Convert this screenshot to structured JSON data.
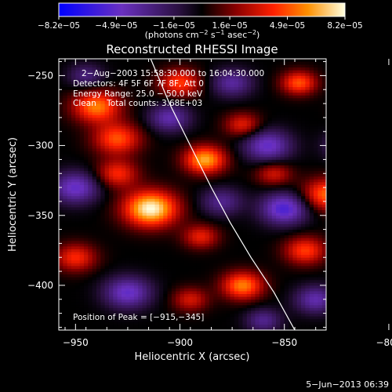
{
  "chart_data": {
    "type": "heatmap",
    "title": "Reconstructed RHESSI Image",
    "xlabel": "Heliocentric X (arcsec)",
    "ylabel": "Heliocentric Y (arcsec)",
    "xlim": [
      -958,
      -830
    ],
    "ylim": [
      -432,
      -238
    ],
    "x_ticks": [
      -950,
      -900,
      -850,
      -800
    ],
    "x_tick_labels": [
      "−950",
      "−900",
      "−850",
      "−800"
    ],
    "y_ticks": [
      -250,
      -300,
      -350,
      -400
    ],
    "y_tick_labels": [
      "−250",
      "−300",
      "−350",
      "−400"
    ],
    "colorbar": {
      "min": -8.2e-05,
      "max": 8.2e-05,
      "tick_labels": [
        "−8.2e−05",
        "−4.9e−05",
        "−1.6e−05",
        "1.6e−05",
        "4.9e−05",
        "8.2e−05"
      ],
      "tick_values": [
        -8.2e-05,
        -4.9e-05,
        -1.6e-05,
        1.6e-05,
        4.9e-05,
        8.2e-05
      ],
      "units_prefix": "(photons cm",
      "units_sup1": "−2",
      "units_mid": " s",
      "units_sup2": "−1",
      "units_mid2": " asec",
      "units_sup3": "−2",
      "units_suffix": ")"
    },
    "annotations": [
      "2−Aug−2003 15:58:30.000 to 16:04:30.000",
      "Detectors: 4F 5F 6F 7F 8F, Att 0",
      "Energy Range: 25.0 − 50.0 keV",
      "Clean    Total counts: 3.68E+03"
    ],
    "peak_label": "Position of Peak = [−915,−345]",
    "peak": [
      -915,
      -345
    ],
    "limb_curve": [
      [
        -914,
        -238
      ],
      [
        -905,
        -270
      ],
      [
        -895,
        -300
      ],
      [
        -885,
        -330
      ],
      [
        -876,
        -355
      ],
      [
        -866,
        -380
      ],
      [
        -855,
        -405
      ],
      [
        -845,
        -432
      ]
    ],
    "sources": [
      {
        "x": -914,
        "y": -345,
        "amp": 1.0,
        "sigma": 9
      },
      {
        "x": -940,
        "y": -272,
        "amp": 0.7,
        "sigma": 8
      },
      {
        "x": -888,
        "y": -310,
        "amp": 0.8,
        "sigma": 7
      },
      {
        "x": -900,
        "y": -255,
        "amp": 0.55,
        "sigma": 7
      },
      {
        "x": -930,
        "y": -295,
        "amp": 0.6,
        "sigma": 8
      },
      {
        "x": -930,
        "y": -320,
        "amp": 0.5,
        "sigma": 7
      },
      {
        "x": -870,
        "y": -400,
        "amp": 0.7,
        "sigma": 7
      },
      {
        "x": -843,
        "y": -255,
        "amp": 0.6,
        "sigma": 6
      },
      {
        "x": -815,
        "y": -275,
        "amp": 0.55,
        "sigma": 6
      },
      {
        "x": -830,
        "y": -335,
        "amp": 0.65,
        "sigma": 8
      },
      {
        "x": -808,
        "y": -350,
        "amp": 0.6,
        "sigma": 6
      },
      {
        "x": -840,
        "y": -375,
        "amp": 0.55,
        "sigma": 7
      },
      {
        "x": -815,
        "y": -415,
        "amp": 0.4,
        "sigma": 6
      },
      {
        "x": -950,
        "y": -380,
        "amp": 0.5,
        "sigma": 7
      },
      {
        "x": -895,
        "y": -410,
        "amp": 0.4,
        "sigma": 6
      },
      {
        "x": -870,
        "y": -285,
        "amp": 0.45,
        "sigma": 6
      },
      {
        "x": -855,
        "y": -320,
        "amp": 0.4,
        "sigma": 6
      },
      {
        "x": -890,
        "y": -365,
        "amp": 0.45,
        "sigma": 6
      },
      {
        "x": -858,
        "y": -300,
        "amp": -0.6,
        "sigma": 8
      },
      {
        "x": -905,
        "y": -280,
        "amp": -0.5,
        "sigma": 7
      },
      {
        "x": -950,
        "y": -330,
        "amp": -0.6,
        "sigma": 8
      },
      {
        "x": -850,
        "y": -345,
        "amp": -0.7,
        "sigma": 8
      },
      {
        "x": -880,
        "y": -340,
        "amp": -0.4,
        "sigma": 7
      },
      {
        "x": -925,
        "y": -405,
        "amp": -0.6,
        "sigma": 8
      },
      {
        "x": -835,
        "y": -410,
        "amp": -0.5,
        "sigma": 7
      },
      {
        "x": -820,
        "y": -300,
        "amp": -0.5,
        "sigma": 7
      },
      {
        "x": -875,
        "y": -255,
        "amp": -0.45,
        "sigma": 7
      },
      {
        "x": -810,
        "y": -385,
        "amp": -0.45,
        "sigma": 6
      },
      {
        "x": -945,
        "y": -250,
        "amp": -0.35,
        "sigma": 6
      },
      {
        "x": -860,
        "y": -425,
        "amp": -0.4,
        "sigma": 6
      }
    ]
  },
  "footer": {
    "date": "5−Jun−2013 06:39"
  }
}
